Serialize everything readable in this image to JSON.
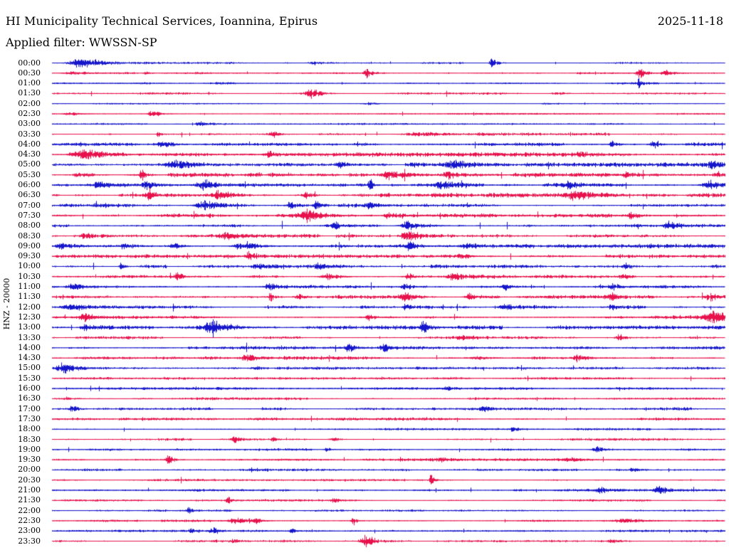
{
  "header": {
    "title": "HI Municipality Technical Services, Ioannina, Epirus",
    "date": "2025-11-18",
    "filter_label": "Applied filter: WWSSN-SP"
  },
  "axis": {
    "channel_label": "HNZ - 20000"
  },
  "colors": {
    "background": "#FFFFFF",
    "text": "#000000",
    "trace_blue": "#1515CC",
    "trace_red": "#E8114C"
  },
  "chart_data": {
    "type": "line",
    "title": "HI Municipality Technical Services, Ioannina, Epirus",
    "subtitle": "Applied filter: WWSSN-SP",
    "date": "2025-11-18",
    "channel": "HNZ",
    "gain_scale": 20000,
    "row_interval_minutes": 30,
    "x_range_minutes": [
      0,
      30
    ],
    "grid": false,
    "legend": false,
    "trace_colors_alternate": [
      "blue",
      "red"
    ],
    "burst_format": "[position_fraction_0to1, amplitude_px, width_px]",
    "rows": [
      {
        "label": "00:00",
        "color": "blue",
        "noise": 0.7,
        "bursts": [
          [
            0.044,
            7,
            12
          ],
          [
            0.39,
            2.5,
            5
          ],
          [
            0.655,
            8,
            3
          ]
        ]
      },
      {
        "label": "00:30",
        "color": "red",
        "noise": 0.7,
        "bursts": [
          [
            0.03,
            2.5,
            8
          ],
          [
            0.14,
            3,
            2
          ],
          [
            0.468,
            7,
            3
          ],
          [
            0.875,
            8,
            4
          ],
          [
            0.912,
            4,
            5
          ]
        ]
      },
      {
        "label": "01:00",
        "color": "blue",
        "noise": 0.8,
        "bursts": [
          [
            0.25,
            2,
            10
          ],
          [
            0.873,
            7,
            2
          ]
        ]
      },
      {
        "label": "01:30",
        "color": "red",
        "noise": 0.8,
        "bursts": [
          [
            0.385,
            8,
            6
          ],
          [
            0.75,
            2,
            6
          ]
        ]
      },
      {
        "label": "02:00",
        "color": "blue",
        "noise": 0.5,
        "bursts": [
          [
            0.473,
            1.5,
            6
          ],
          [
            0.737,
            1.5,
            6
          ]
        ]
      },
      {
        "label": "02:30",
        "color": "red",
        "noise": 0.7,
        "bursts": [
          [
            0.028,
            2,
            6
          ],
          [
            0.15,
            6,
            4
          ]
        ]
      },
      {
        "label": "03:00",
        "color": "blue",
        "noise": 0.7,
        "bursts": [
          [
            0.219,
            3,
            4
          ]
        ]
      },
      {
        "label": "03:30",
        "color": "red",
        "noise": 1.0,
        "bursts": [
          [
            0.158,
            4,
            2
          ],
          [
            0.33,
            4,
            5
          ],
          [
            0.55,
            2.5,
            18
          ]
        ]
      },
      {
        "label": "04:00",
        "color": "blue",
        "noise": 1.4,
        "bursts": [
          [
            0.166,
            4,
            6
          ],
          [
            0.833,
            5,
            4
          ],
          [
            0.896,
            5,
            4
          ]
        ]
      },
      {
        "label": "04:30",
        "color": "red",
        "noise": 1.5,
        "bursts": [
          [
            0.05,
            5,
            10
          ],
          [
            0.325,
            4,
            6
          ],
          [
            0.79,
            4,
            6
          ]
        ]
      },
      {
        "label": "05:00",
        "color": "blue",
        "noise": 1.5,
        "bursts": [
          [
            0.187,
            5,
            12
          ],
          [
            0.43,
            4,
            6
          ],
          [
            0.6,
            5,
            8
          ],
          [
            0.98,
            4,
            6
          ]
        ]
      },
      {
        "label": "05:30",
        "color": "red",
        "noise": 1.5,
        "bursts": [
          [
            0.134,
            8,
            3
          ],
          [
            0.505,
            6,
            8
          ],
          [
            0.59,
            5,
            6
          ],
          [
            0.854,
            4,
            5
          ],
          [
            0.99,
            5,
            4
          ]
        ]
      },
      {
        "label": "06:00",
        "color": "blue",
        "noise": 1.6,
        "bursts": [
          [
            0.07,
            5,
            6
          ],
          [
            0.14,
            5,
            5
          ],
          [
            0.23,
            7,
            10
          ],
          [
            0.473,
            8,
            2
          ],
          [
            0.58,
            5,
            6
          ],
          [
            0.77,
            5,
            6
          ],
          [
            0.98,
            6,
            8
          ]
        ]
      },
      {
        "label": "06:30",
        "color": "red",
        "noise": 1.5,
        "bursts": [
          [
            0.145,
            9,
            3
          ],
          [
            0.25,
            7,
            9
          ],
          [
            0.378,
            5,
            5
          ],
          [
            0.78,
            6,
            10
          ]
        ]
      },
      {
        "label": "07:00",
        "color": "blue",
        "noise": 1.5,
        "bursts": [
          [
            0.23,
            7,
            10
          ],
          [
            0.357,
            5,
            6
          ],
          [
            0.394,
            9,
            3
          ],
          [
            0.473,
            4,
            5
          ]
        ]
      },
      {
        "label": "07:30",
        "color": "red",
        "noise": 1.4,
        "bursts": [
          [
            0.378,
            8,
            7
          ],
          [
            0.5,
            5,
            5
          ],
          [
            0.864,
            5,
            6
          ]
        ]
      },
      {
        "label": "08:00",
        "color": "blue",
        "noise": 1.5,
        "bursts": [
          [
            0.42,
            5,
            5
          ],
          [
            0.531,
            7,
            8
          ],
          [
            0.917,
            5,
            5
          ]
        ]
      },
      {
        "label": "08:30",
        "color": "red",
        "noise": 1.4,
        "bursts": [
          [
            0.05,
            4,
            5
          ],
          [
            0.261,
            5,
            6
          ],
          [
            0.531,
            9,
            8
          ]
        ]
      },
      {
        "label": "09:00",
        "color": "blue",
        "noise": 1.5,
        "bursts": [
          [
            0.018,
            5,
            8
          ],
          [
            0.108,
            4,
            5
          ],
          [
            0.182,
            4,
            5
          ],
          [
            0.283,
            6,
            8
          ],
          [
            0.531,
            8,
            2
          ],
          [
            0.616,
            4,
            5
          ]
        ]
      },
      {
        "label": "09:30",
        "color": "red",
        "noise": 1.2,
        "bursts": [
          [
            0.293,
            7,
            3
          ],
          [
            0.611,
            3,
            6
          ]
        ]
      },
      {
        "label": "10:00",
        "color": "blue",
        "noise": 1.3,
        "bursts": [
          [
            0.103,
            6,
            2
          ],
          [
            0.304,
            3,
            5
          ],
          [
            0.399,
            4,
            6
          ],
          [
            0.854,
            6,
            3
          ]
        ]
      },
      {
        "label": "10:30",
        "color": "red",
        "noise": 1.3,
        "bursts": [
          [
            0.187,
            4,
            4
          ],
          [
            0.41,
            5,
            7
          ],
          [
            0.531,
            4,
            4
          ],
          [
            0.6,
            5,
            7
          ],
          [
            0.849,
            4,
            4
          ]
        ]
      },
      {
        "label": "11:00",
        "color": "blue",
        "noise": 1.3,
        "bursts": [
          [
            0.034,
            4,
            6
          ],
          [
            0.325,
            5,
            6
          ],
          [
            0.526,
            4,
            4
          ],
          [
            0.674,
            6,
            3
          ],
          [
            0.833,
            4,
            4
          ]
        ]
      },
      {
        "label": "11:30",
        "color": "red",
        "noise": 1.3,
        "bursts": [
          [
            0.325,
            6,
            3
          ],
          [
            0.367,
            4,
            4
          ],
          [
            0.526,
            5,
            6
          ],
          [
            0.621,
            4,
            4
          ],
          [
            0.833,
            4,
            4
          ],
          [
            0.98,
            5,
            6
          ]
        ]
      },
      {
        "label": "12:00",
        "color": "blue",
        "noise": 1.4,
        "bursts": [
          [
            0.029,
            6,
            10
          ],
          [
            0.526,
            5,
            3
          ],
          [
            0.674,
            4,
            4
          ],
          [
            0.833,
            4,
            4
          ]
        ]
      },
      {
        "label": "12:30",
        "color": "red",
        "noise": 1.3,
        "bursts": [
          [
            0.05,
            4,
            5
          ],
          [
            0.473,
            4,
            5
          ],
          [
            0.984,
            10,
            9
          ]
        ]
      },
      {
        "label": "13:00",
        "color": "blue",
        "noise": 1.4,
        "bursts": [
          [
            0.05,
            4,
            5
          ],
          [
            0.24,
            9,
            9
          ],
          [
            0.552,
            9,
            3
          ]
        ]
      },
      {
        "label": "13:30",
        "color": "red",
        "noise": 1.1,
        "bursts": [
          [
            0.61,
            3,
            5
          ],
          [
            0.843,
            6,
            3
          ]
        ]
      },
      {
        "label": "14:00",
        "color": "blue",
        "noise": 1.2,
        "bursts": [
          [
            0.441,
            8,
            3
          ],
          [
            0.494,
            6,
            3
          ]
        ]
      },
      {
        "label": "14:30",
        "color": "red",
        "noise": 1.2,
        "bursts": [
          [
            0.293,
            5,
            7
          ],
          [
            0.632,
            4,
            6
          ],
          [
            0.78,
            5,
            3
          ]
        ]
      },
      {
        "label": "15:00",
        "color": "blue",
        "noise": 1.0,
        "bursts": [
          [
            0.018,
            7,
            7
          ],
          [
            0.304,
            3,
            4
          ]
        ]
      },
      {
        "label": "15:30",
        "color": "red",
        "noise": 0.9,
        "bursts": []
      },
      {
        "label": "16:00",
        "color": "blue",
        "noise": 1.0,
        "bursts": [
          [
            0.589,
            2.5,
            6
          ]
        ]
      },
      {
        "label": "16:30",
        "color": "red",
        "noise": 0.9,
        "bursts": [
          [
            0.023,
            2.5,
            4
          ]
        ]
      },
      {
        "label": "17:00",
        "color": "blue",
        "noise": 1.1,
        "bursts": [
          [
            0.029,
            5,
            3
          ],
          [
            0.642,
            3,
            4
          ]
        ]
      },
      {
        "label": "17:30",
        "color": "red",
        "noise": 1.0,
        "bursts": []
      },
      {
        "label": "18:00",
        "color": "blue",
        "noise": 0.9,
        "bursts": [
          [
            0.685,
            4,
            3
          ]
        ]
      },
      {
        "label": "18:30",
        "color": "red",
        "noise": 0.9,
        "bursts": [
          [
            0.272,
            4,
            3
          ],
          [
            0.33,
            4,
            3
          ],
          [
            0.42,
            3,
            4
          ]
        ]
      },
      {
        "label": "19:00",
        "color": "blue",
        "noise": 0.9,
        "bursts": [
          [
            0.409,
            3,
            3
          ],
          [
            0.812,
            4,
            6
          ]
        ]
      },
      {
        "label": "19:30",
        "color": "red",
        "noise": 1.0,
        "bursts": [
          [
            0.173,
            7,
            3
          ],
          [
            0.579,
            3,
            4
          ],
          [
            0.77,
            3,
            10
          ]
        ]
      },
      {
        "label": "20:00",
        "color": "blue",
        "noise": 0.9,
        "bursts": [
          [
            0.298,
            3,
            3
          ],
          [
            0.864,
            3,
            3
          ]
        ]
      },
      {
        "label": "20:30",
        "color": "red",
        "noise": 0.8,
        "bursts": [
          [
            0.563,
            8,
            2
          ]
        ]
      },
      {
        "label": "21:00",
        "color": "blue",
        "noise": 0.9,
        "bursts": [
          [
            0.817,
            4,
            5
          ],
          [
            0.902,
            7,
            4
          ]
        ]
      },
      {
        "label": "21:30",
        "color": "red",
        "noise": 0.8,
        "bursts": [
          [
            0.261,
            7,
            2
          ],
          [
            0.42,
            3,
            3
          ]
        ]
      },
      {
        "label": "22:00",
        "color": "blue",
        "noise": 0.8,
        "bursts": [
          [
            0.203,
            6,
            2
          ]
        ]
      },
      {
        "label": "22:30",
        "color": "red",
        "noise": 1.0,
        "bursts": [
          [
            0.272,
            4,
            5
          ],
          [
            0.304,
            4,
            4
          ],
          [
            0.447,
            8,
            2
          ],
          [
            0.854,
            4,
            12
          ]
        ]
      },
      {
        "label": "23:00",
        "color": "blue",
        "noise": 0.8,
        "bursts": [
          [
            0.208,
            4,
            3
          ],
          [
            0.24,
            4,
            4
          ],
          [
            0.357,
            3,
            3
          ]
        ]
      },
      {
        "label": "23:30",
        "color": "red",
        "noise": 0.8,
        "bursts": [
          [
            0.272,
            2.5,
            4
          ],
          [
            0.468,
            9,
            6
          ],
          [
            0.833,
            2.5,
            4
          ]
        ]
      }
    ]
  }
}
